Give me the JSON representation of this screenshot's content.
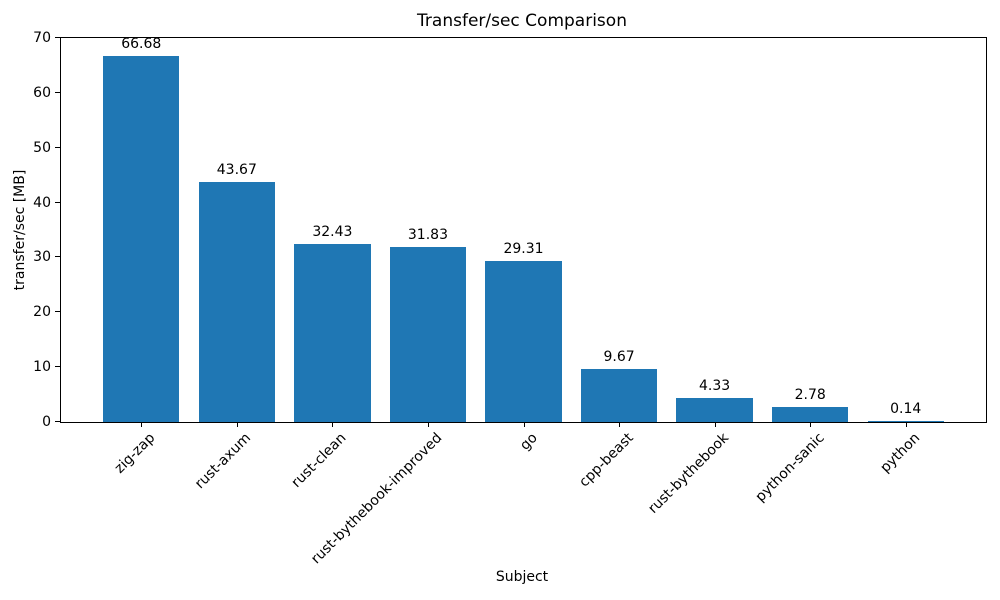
{
  "chart_data": {
    "type": "bar",
    "title": "Transfer/sec Comparison",
    "xlabel": "Subject",
    "ylabel": "transfer/sec [MB]",
    "categories": [
      "zig-zap",
      "rust-axum",
      "rust-clean",
      "rust-bythebook-improved",
      "go",
      "cpp-beast",
      "rust-bythebook",
      "python-sanic",
      "python"
    ],
    "values": [
      66.68,
      43.67,
      32.43,
      31.83,
      29.31,
      9.67,
      4.33,
      2.78,
      0.14
    ],
    "bar_labels": [
      "66.68",
      "43.67",
      "32.43",
      "31.83",
      "29.31",
      "9.67",
      "4.33",
      "2.78",
      "0.14"
    ],
    "yticks": [
      0,
      10,
      20,
      30,
      40,
      50,
      60,
      70
    ],
    "ylim": [
      0,
      70
    ],
    "bar_color": "#1f77b4",
    "grid": false,
    "legend": "none"
  }
}
